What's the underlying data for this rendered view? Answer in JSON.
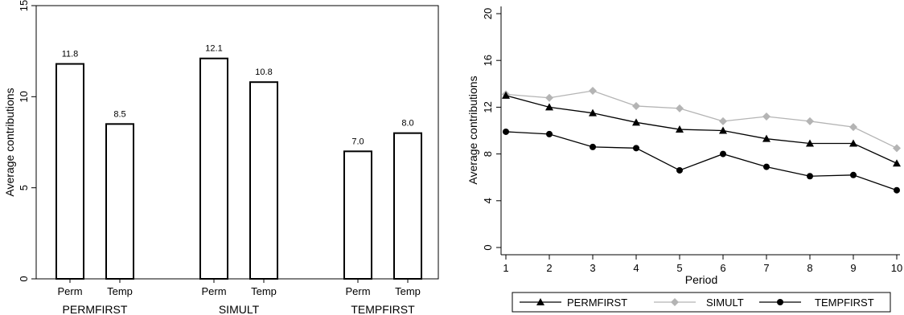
{
  "chart_data": [
    {
      "type": "bar",
      "ylabel": "Average contributions",
      "ylim": [
        0,
        15
      ],
      "yticks": [
        0,
        5,
        10,
        15
      ],
      "groups": [
        {
          "name": "PERMFIRST",
          "categories": [
            "Perm",
            "Temp"
          ],
          "values": [
            11.8,
            8.5
          ],
          "labels": [
            "11.8",
            "8.5"
          ]
        },
        {
          "name": "SIMULT",
          "categories": [
            "Perm",
            "Temp"
          ],
          "values": [
            12.1,
            10.8
          ],
          "labels": [
            "12.1",
            "10.8"
          ]
        },
        {
          "name": "TEMPFIRST",
          "categories": [
            "Perm",
            "Temp"
          ],
          "values": [
            7.0,
            8.0
          ],
          "labels": [
            "7.0",
            "8.0"
          ]
        }
      ],
      "bar_fill": "#ffffff",
      "bar_stroke": "#000000"
    },
    {
      "type": "line",
      "xlabel": "Period",
      "ylabel": "Average contributions",
      "x": [
        1,
        2,
        3,
        4,
        5,
        6,
        7,
        8,
        9,
        10
      ],
      "xlim": [
        1,
        10
      ],
      "ylim": [
        0,
        20
      ],
      "yticks": [
        0,
        4,
        8,
        12,
        16,
        20
      ],
      "legend_position": "bottom",
      "series": [
        {
          "name": "PERMFIRST",
          "color": "#000000",
          "marker": "triangle",
          "values": [
            13.0,
            12.0,
            11.5,
            10.7,
            10.1,
            10.0,
            9.3,
            8.9,
            8.9,
            7.2
          ]
        },
        {
          "name": "SIMULT",
          "color": "#b4b4b4",
          "marker": "diamond",
          "values": [
            13.1,
            12.8,
            13.4,
            12.1,
            11.9,
            10.8,
            11.2,
            10.8,
            10.3,
            8.5
          ]
        },
        {
          "name": "TEMPFIRST",
          "color": "#000000",
          "marker": "circle",
          "values": [
            9.9,
            9.7,
            8.6,
            8.5,
            6.6,
            8.0,
            6.9,
            6.1,
            6.2,
            4.9
          ]
        }
      ]
    }
  ]
}
